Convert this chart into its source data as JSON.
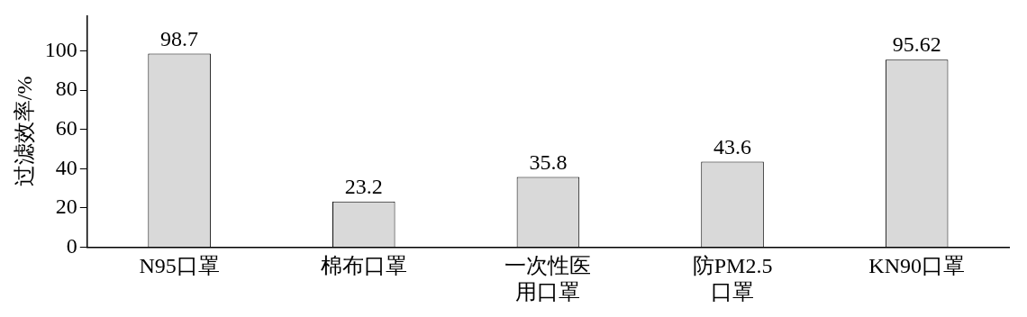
{
  "chart_data": {
    "type": "bar",
    "ylabel": "过滤效率/%",
    "categories": [
      "N95口罩",
      "棉布口罩",
      "一次性医用口罩",
      "防PM2.5口罩",
      "KN90口罩"
    ],
    "values": [
      98.7,
      23.2,
      35.8,
      43.6,
      95.62
    ],
    "color": "#d9d9d9",
    "ylim": [
      0,
      118
    ],
    "yticks": [
      0,
      20,
      40,
      60,
      80,
      100
    ],
    "grid": false,
    "legend": false,
    "data_labels": true
  }
}
